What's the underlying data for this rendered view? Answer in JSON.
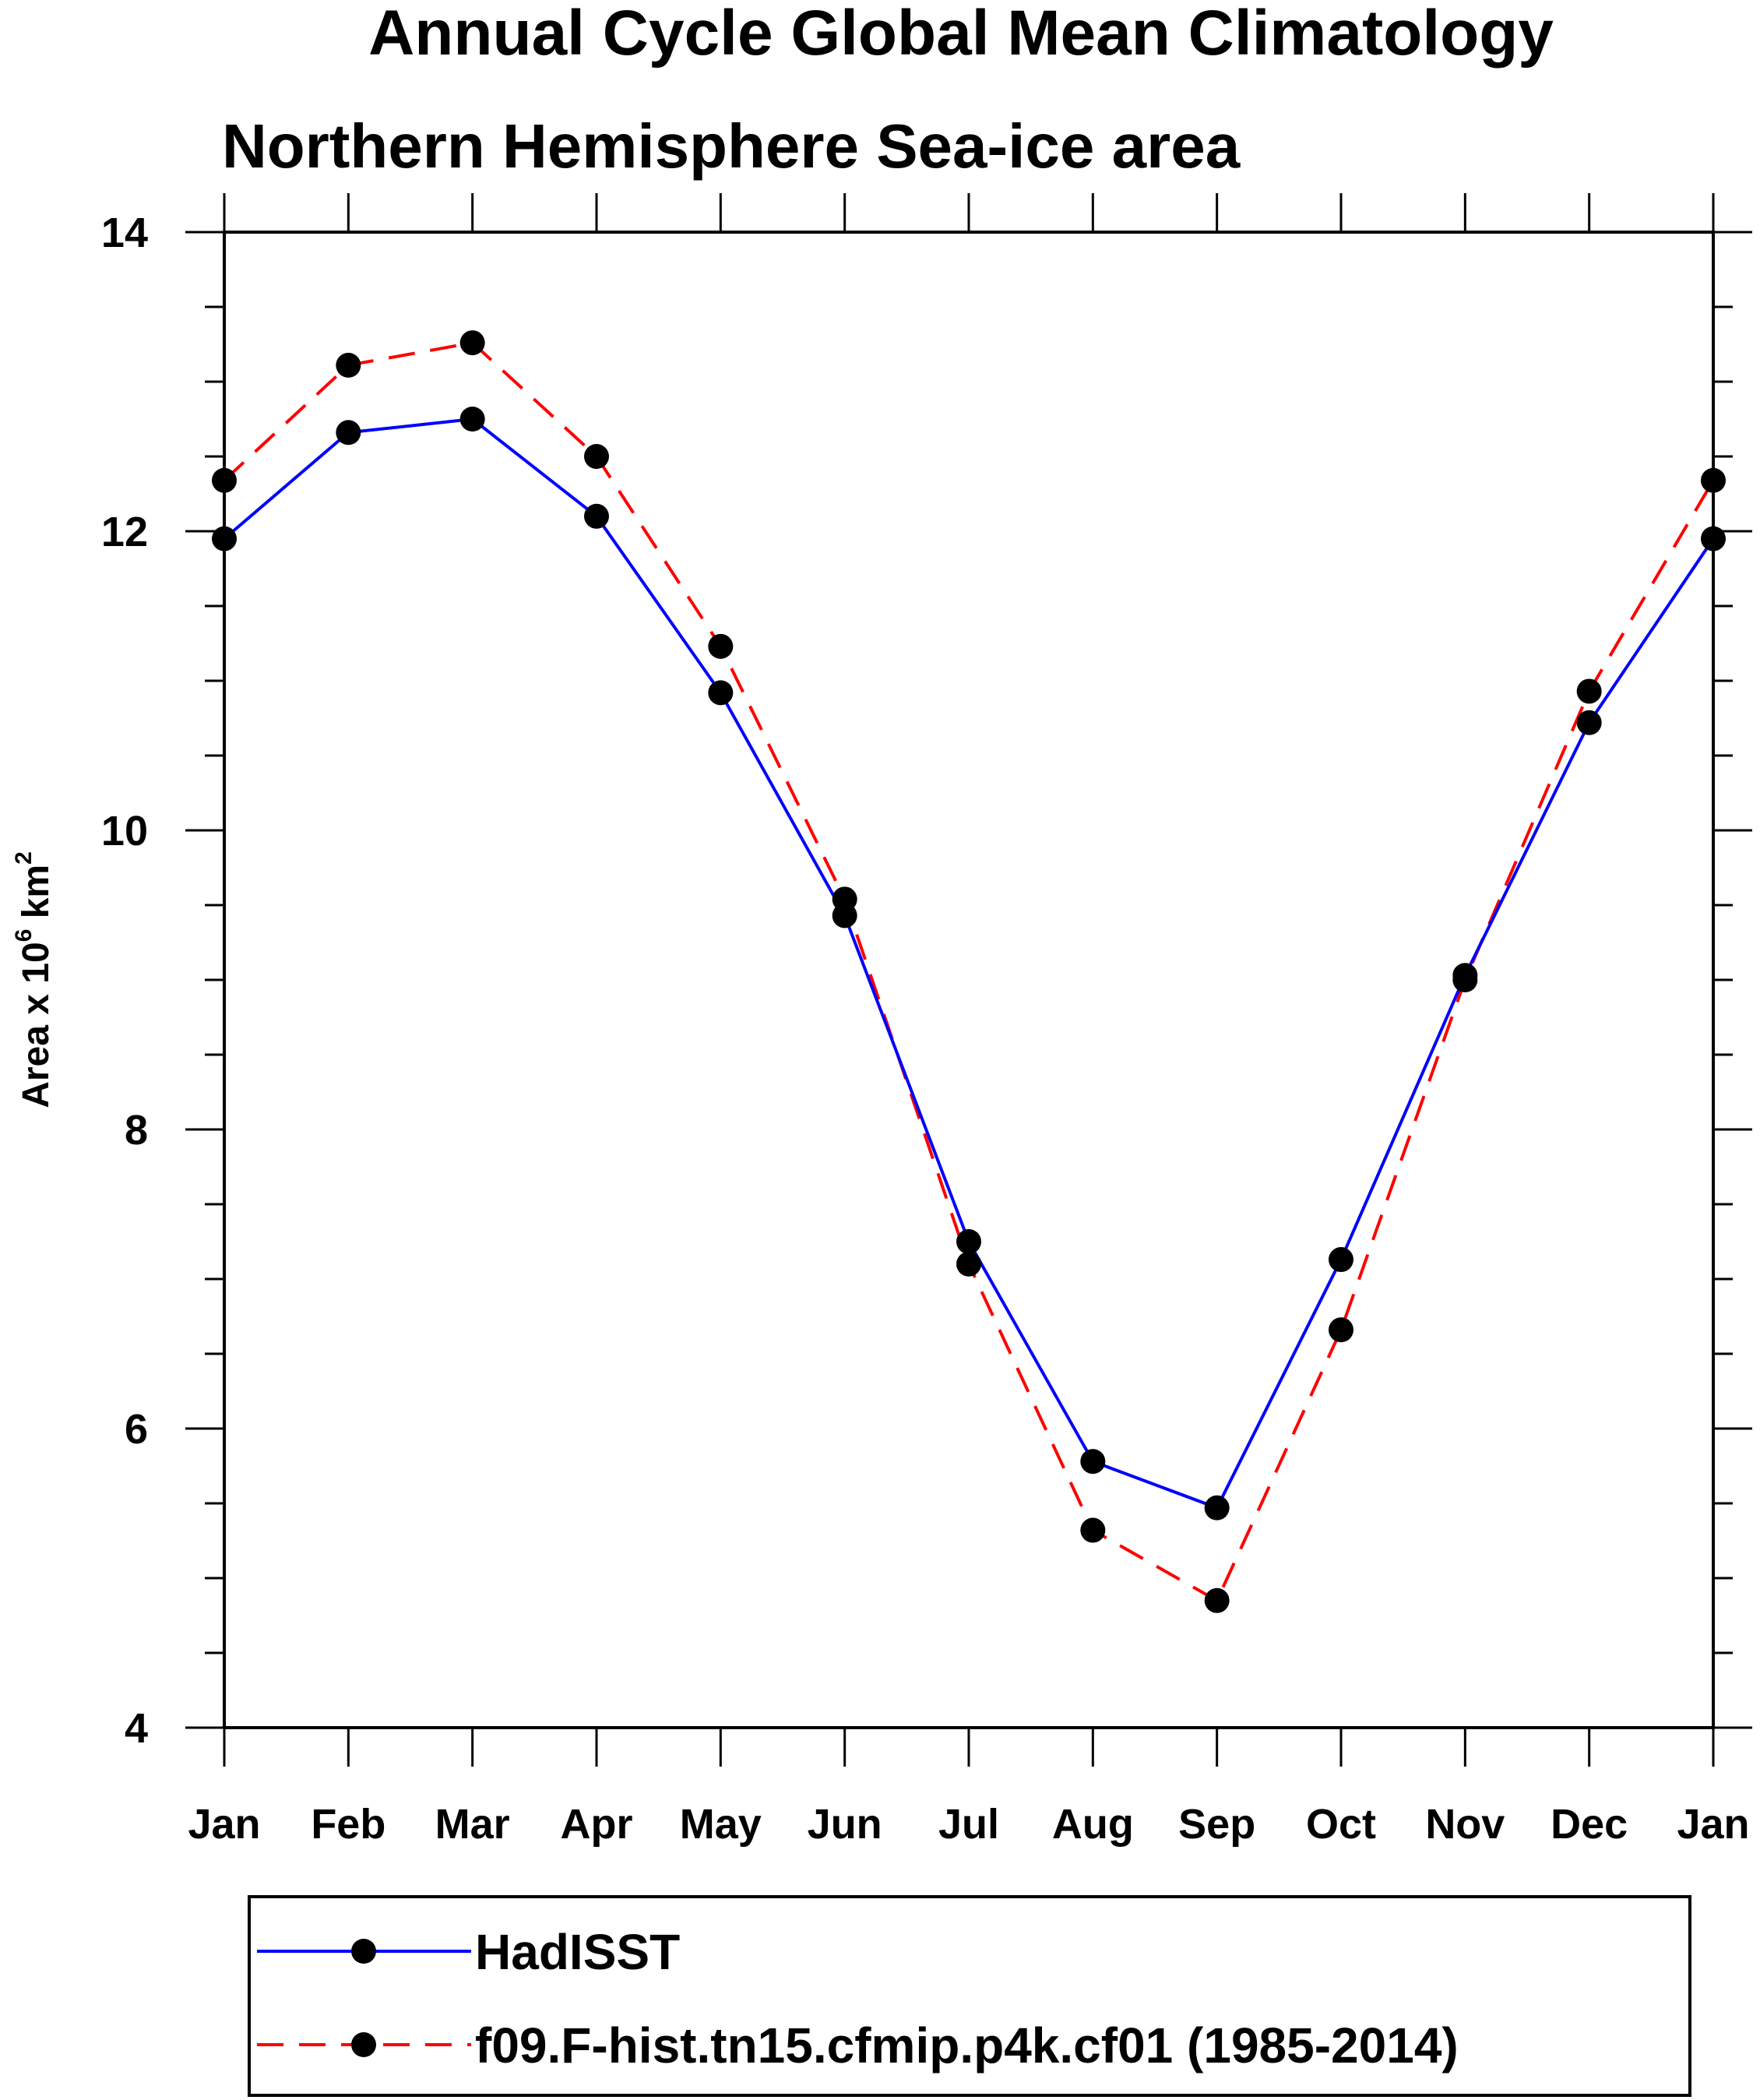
{
  "chart_data": {
    "type": "line",
    "title": "Annual Cycle Global Mean Climatology",
    "subtitle": "Northern Hemisphere Sea-ice area",
    "ylabel": "Area x 10",
    "ylabel_exp": "6",
    "ylabel_unit": " km",
    "ylabel_unit_exp": "2",
    "xlabel": "",
    "categories": [
      "Jan",
      "Feb",
      "Mar",
      "Apr",
      "May",
      "Jun",
      "Jul",
      "Aug",
      "Sep",
      "Oct",
      "Nov",
      "Dec",
      "Jan"
    ],
    "ylim": [
      4,
      14
    ],
    "yticks": [
      4,
      6,
      8,
      10,
      12,
      14
    ],
    "yminor_step": 0.5,
    "series": [
      {
        "name": "HadISST",
        "color": "#0000ff",
        "dash": "solid",
        "values": [
          11.95,
          12.66,
          12.75,
          12.1,
          10.92,
          9.43,
          7.25,
          5.78,
          5.47,
          7.13,
          9.03,
          10.72,
          11.95
        ]
      },
      {
        "name": "f09.F-hist.tn15.cfmip.p4k.cf01 (1985-2014)",
        "color": "#ff0000",
        "dash": "dashed",
        "values": [
          12.34,
          13.11,
          13.26,
          12.5,
          11.23,
          9.54,
          7.1,
          5.32,
          4.85,
          6.66,
          9.0,
          10.93,
          12.34
        ]
      }
    ],
    "marker_color": "#000000",
    "legend_position": "bottom"
  }
}
